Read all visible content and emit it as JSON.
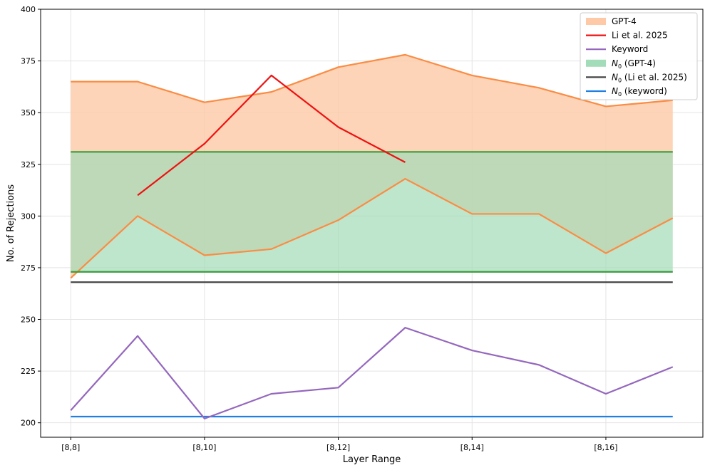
{
  "chart_data": {
    "type": "line",
    "title": "",
    "xlabel": "Layer Range",
    "ylabel": "No. of Rejections",
    "x": [
      0,
      1,
      2,
      3,
      4,
      5,
      6,
      7,
      8,
      9
    ],
    "x_tick_positions": [
      0,
      2,
      4,
      6,
      8
    ],
    "x_tick_labels": [
      "[8,8]",
      "[8,10]",
      "[8,12]",
      "[8,14]",
      "[8,16]"
    ],
    "y_ticks": [
      200,
      225,
      250,
      275,
      300,
      325,
      350,
      375,
      400
    ],
    "ylim": [
      193,
      400
    ],
    "xlim": [
      -0.45,
      9.45
    ],
    "grid": true,
    "legend_position": "top-right",
    "bands": [
      {
        "name": "GPT-4",
        "legend_label": "GPT-4",
        "fill": "#fdc9a6",
        "stroke": "#fb8c43",
        "upper": [
          365,
          365,
          355,
          360,
          372,
          378,
          368,
          362,
          353,
          356
        ],
        "lower": [
          270,
          300,
          281,
          284,
          298,
          318,
          301,
          301,
          282,
          299
        ]
      },
      {
        "name": "N0 (GPT-4)",
        "legend_label_main": "N",
        "legend_label_sub": "0",
        "legend_label_rest": " (GPT-4)",
        "fill": "#a3dcb8",
        "stroke": "#3a9d3a",
        "upper_value": 331,
        "lower_value": 273
      }
    ],
    "series": [
      {
        "name": "Li et al. 2025",
        "legend_label": "Li et al. 2025",
        "color": "#ee1111",
        "x": [
          1,
          2,
          3,
          4,
          5
        ],
        "values": [
          310,
          335,
          368,
          343,
          326
        ]
      },
      {
        "name": "Keyword",
        "legend_label": "Keyword",
        "color": "#9467bd",
        "x": [
          0,
          1,
          2,
          3,
          4,
          5,
          6,
          7,
          8,
          9
        ],
        "values": [
          206,
          242,
          202,
          214,
          217,
          246,
          235,
          228,
          214,
          227
        ]
      }
    ],
    "hlines": [
      {
        "name": "N0 (Li et al. 2025)",
        "legend_label_main": "N",
        "legend_label_sub": "0",
        "legend_label_rest": " (Li et al. 2025)",
        "color": "#444444",
        "value": 268
      },
      {
        "name": "N0 (keyword)",
        "legend_label_main": "N",
        "legend_label_sub": "0",
        "legend_label_rest": " (keyword)",
        "color": "#1f7fe5",
        "value": 203
      }
    ]
  }
}
